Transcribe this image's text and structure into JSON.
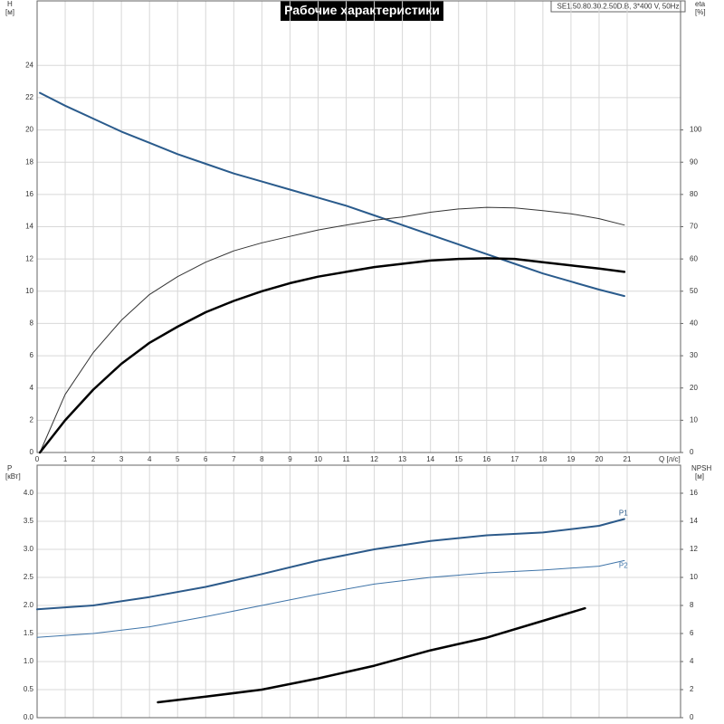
{
  "chart_data": [
    {
      "type": "line",
      "title": "Рабочие характеристики",
      "annotation": "SE1.50.80.30.2.50D.B, 3*400 V, 50Hz",
      "ylabel": "H",
      "yunit": "[м]",
      "y2label": "eta",
      "y2unit": "[%]",
      "xlabel": "Q [л/с]",
      "x": [
        0.1,
        1,
        2,
        3,
        4,
        5,
        6,
        7,
        8,
        9,
        10,
        11,
        12,
        13,
        14,
        15,
        16,
        17,
        18,
        19,
        20,
        20.9
      ],
      "series": [
        {
          "color": "#2a5b8c",
          "values": [
            22.3,
            21.5,
            20.7,
            19.9,
            19.2,
            18.5,
            17.9,
            17.3,
            16.8,
            16.3,
            15.8,
            15.3,
            14.7,
            14.1,
            13.5,
            12.9,
            12.3,
            11.7,
            11.1,
            10.6,
            10.1,
            9.7
          ]
        },
        {
          "color": "#333333",
          "axis": "y2",
          "values": [
            0,
            18,
            31,
            41,
            49,
            54.5,
            59,
            62.5,
            65,
            67,
            69,
            70.5,
            72,
            73,
            74.5,
            75.5,
            76,
            75.8,
            75,
            74,
            72.5,
            70.5
          ]
        },
        {
          "color": "#000000",
          "axis": "y2",
          "values": [
            0,
            10,
            19.5,
            27.5,
            34,
            39,
            43.5,
            47,
            50,
            52.5,
            54.5,
            56,
            57.5,
            58.5,
            59.5,
            60,
            60.2,
            60,
            59,
            58,
            57,
            56
          ]
        }
      ],
      "xlim": [
        0,
        22.9
      ],
      "xticks": [
        0,
        1,
        2,
        3,
        4,
        5,
        6,
        7,
        8,
        9,
        10,
        11,
        12,
        13,
        14,
        15,
        16,
        17,
        18,
        19,
        20,
        21
      ],
      "ylim": [
        0,
        28
      ],
      "yticks": [
        0,
        2,
        4,
        6,
        8,
        10,
        12,
        14,
        16,
        18,
        20,
        22,
        24
      ],
      "y2lim": [
        0,
        140
      ],
      "y2ticks": [
        0,
        10,
        20,
        30,
        40,
        50,
        60,
        70,
        80,
        90,
        100
      ],
      "grid": true,
      "show_xtick_labels": true
    },
    {
      "type": "line",
      "ylabel": "P",
      "yunit": "[кВт]",
      "y2label": "NPSH",
      "y2unit": "[м]",
      "x": [
        0,
        2,
        4,
        6,
        8,
        10,
        12,
        14,
        16,
        18,
        20,
        20.9
      ],
      "series": [
        {
          "name": "P1",
          "color": "#2c5a8a",
          "values": [
            1.93,
            2.0,
            2.15,
            2.33,
            2.56,
            2.8,
            3.0,
            3.15,
            3.25,
            3.3,
            3.42,
            3.54
          ]
        },
        {
          "name": "P2",
          "color": "#3f74a8",
          "values": [
            1.43,
            1.5,
            1.62,
            1.8,
            2.0,
            2.2,
            2.38,
            2.5,
            2.58,
            2.63,
            2.7,
            2.8
          ]
        },
        {
          "color": "#000000",
          "axis": "y2",
          "x": [
            4.3,
            6,
            8,
            10,
            12,
            14,
            16,
            18,
            19.5
          ],
          "values": [
            1.1,
            1.5,
            2.0,
            2.8,
            3.7,
            4.8,
            5.7,
            6.9,
            7.8
          ]
        }
      ],
      "xlim": [
        0,
        22.9
      ],
      "xticks": [
        0,
        1,
        2,
        3,
        4,
        5,
        6,
        7,
        8,
        9,
        10,
        11,
        12,
        13,
        14,
        15,
        16,
        17,
        18,
        19,
        20,
        21
      ],
      "ylim": [
        0,
        4.5
      ],
      "yticks": [
        {
          "value": 0,
          "label": "0.0"
        },
        0.5,
        {
          "value": 1,
          "label": "1.0"
        },
        1.5,
        {
          "value": 2,
          "label": "2.0"
        },
        2.5,
        {
          "value": 3,
          "label": "3.0"
        },
        3.5,
        {
          "value": 4,
          "label": "4.0"
        }
      ],
      "y2lim": [
        0,
        18
      ],
      "y2ticks": [
        0,
        2,
        4,
        6,
        8,
        10,
        12,
        14,
        16
      ],
      "grid": true,
      "show_xtick_labels": false
    }
  ]
}
